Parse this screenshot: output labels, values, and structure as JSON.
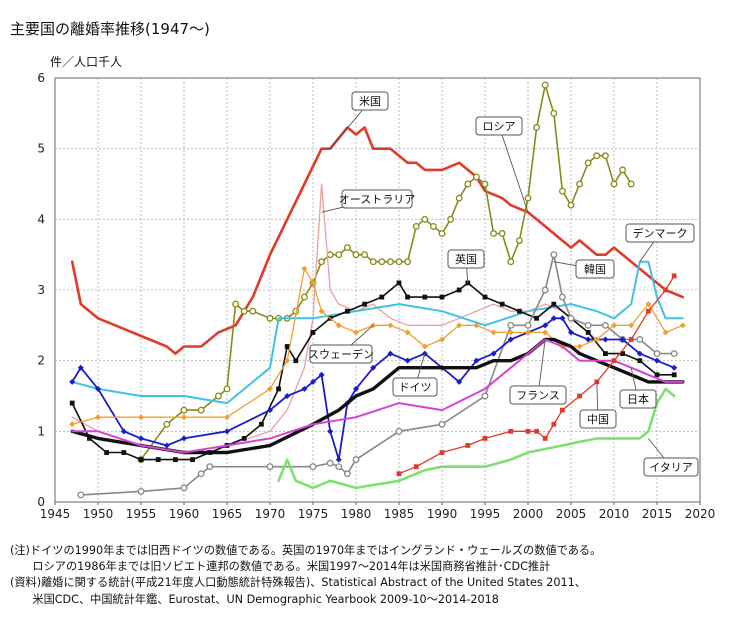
{
  "title": "主要国の離婚率推移(1947〜)",
  "notes": [
    "(注)ドイツの1990年までは旧西ドイツの数値である。英国の1970年まではイングランド・ウェールズの数値である。",
    "　　ロシアの1986年までは旧ソビエト連邦の数値である。米国1997〜2014年は米国商務省推計･CDC推計",
    "(資料)離婚に関する統計(平成21年度人口動態統計特殊報告)、Statistical Abstract of the United States 2011、",
    "　　米国CDC、中国統計年鑑、Eurostat、UN Demographic Yearbook 2009-10〜2014-2018"
  ],
  "chart_data": {
    "type": "line",
    "ylabel": "件／人口千人",
    "xlabel": "",
    "xlim": [
      1945,
      2020
    ],
    "ylim": [
      0,
      6
    ],
    "xticks": [
      1945,
      1950,
      1955,
      1960,
      1965,
      1970,
      1975,
      1980,
      1985,
      1990,
      1995,
      2000,
      2005,
      2010,
      2015,
      2020
    ],
    "yticks": [
      0,
      1,
      2,
      3,
      4,
      5,
      6
    ],
    "grid": true,
    "series": [
      {
        "name": "米国",
        "color": "#e03a2a",
        "width": 2.6,
        "marker": "none",
        "x": [
          1947,
          1948,
          1950,
          1952,
          1954,
          1956,
          1958,
          1959,
          1960,
          1962,
          1964,
          1966,
          1968,
          1970,
          1972,
          1974,
          1976,
          1977,
          1979,
          1980,
          1981,
          1982,
          1984,
          1986,
          1987,
          1988,
          1990,
          1992,
          1994,
          1995,
          1997,
          1998,
          2000,
          2001,
          2003,
          2005,
          2006,
          2007,
          2008,
          2009,
          2010,
          2012,
          2014,
          2016,
          2018
        ],
        "y": [
          3.4,
          2.8,
          2.6,
          2.5,
          2.4,
          2.3,
          2.2,
          2.1,
          2.2,
          2.2,
          2.4,
          2.5,
          2.9,
          3.5,
          4.0,
          4.5,
          5.0,
          5.0,
          5.3,
          5.2,
          5.3,
          5.0,
          5.0,
          4.8,
          4.8,
          4.7,
          4.7,
          4.8,
          4.6,
          4.4,
          4.3,
          4.2,
          4.1,
          4.0,
          3.8,
          3.6,
          3.7,
          3.6,
          3.5,
          3.5,
          3.6,
          3.4,
          3.2,
          3.0,
          2.9
        ]
      },
      {
        "name": "ロシア",
        "color": "#8a8a1a",
        "width": 1.6,
        "marker": "circle",
        "markerFill": "#ffffff",
        "x": [
          1955,
          1958,
          1960,
          1962,
          1964,
          1965,
          1966,
          1967,
          1968,
          1970,
          1971,
          1972,
          1973,
          1974,
          1975,
          1976,
          1977,
          1978,
          1979,
          1980,
          1981,
          1982,
          1983,
          1984,
          1985,
          1986,
          1987,
          1988,
          1989,
          1990,
          1991,
          1992,
          1993,
          1994,
          1995,
          1996,
          1997,
          1998,
          1999,
          2000,
          2001,
          2002,
          2003,
          2004,
          2005,
          2006,
          2007,
          2008,
          2009,
          2010,
          2011,
          2012
        ],
        "y": [
          0.6,
          1.1,
          1.3,
          1.3,
          1.5,
          1.6,
          2.8,
          2.7,
          2.7,
          2.6,
          2.6,
          2.6,
          2.7,
          2.9,
          3.1,
          3.4,
          3.5,
          3.5,
          3.6,
          3.5,
          3.5,
          3.4,
          3.4,
          3.4,
          3.4,
          3.4,
          3.9,
          4.0,
          3.9,
          3.8,
          4.0,
          4.3,
          4.5,
          4.6,
          4.5,
          3.8,
          3.8,
          3.4,
          3.7,
          4.3,
          5.3,
          5.9,
          5.5,
          4.4,
          4.2,
          4.5,
          4.8,
          4.9,
          4.9,
          4.5,
          4.7,
          4.5
        ]
      },
      {
        "name": "オーストラリア",
        "color": "#e8a0a0",
        "width": 1.3,
        "marker": "none",
        "x": [
          1947,
          1950,
          1955,
          1960,
          1965,
          1970,
          1972,
          1974,
          1975,
          1976,
          1977,
          1978,
          1980,
          1982,
          1984,
          1986,
          1988,
          1990,
          1992,
          1994,
          1996,
          1998,
          2000,
          2002,
          2004,
          2006,
          2008
        ],
        "y": [
          1.2,
          1.0,
          0.8,
          0.7,
          0.8,
          1.0,
          1.3,
          1.9,
          2.6,
          4.5,
          3.0,
          2.8,
          2.7,
          2.8,
          2.6,
          2.5,
          2.5,
          2.5,
          2.6,
          2.7,
          2.8,
          2.7,
          2.7,
          2.8,
          2.7,
          2.5,
          2.3
        ]
      },
      {
        "name": "デンマーク",
        "color": "#3cc4e6",
        "width": 2.0,
        "marker": "none",
        "x": [
          1947,
          1950,
          1955,
          1960,
          1965,
          1970,
          1971,
          1975,
          1980,
          1985,
          1990,
          1995,
          2000,
          2005,
          2008,
          2010,
          2012,
          2013,
          2014,
          2015,
          2016,
          2017,
          2018
        ],
        "y": [
          1.7,
          1.6,
          1.5,
          1.5,
          1.4,
          1.9,
          2.6,
          2.6,
          2.7,
          2.8,
          2.7,
          2.5,
          2.7,
          2.8,
          2.7,
          2.6,
          2.8,
          3.4,
          3.4,
          2.9,
          2.6,
          2.6,
          2.6
        ]
      },
      {
        "name": "英国",
        "color": "#111111",
        "width": 1.6,
        "marker": "square",
        "x": [
          1947,
          1949,
          1951,
          1953,
          1955,
          1957,
          1959,
          1961,
          1963,
          1965,
          1967,
          1969,
          1971,
          1972,
          1973,
          1975,
          1977,
          1979,
          1981,
          1983,
          1985,
          1986,
          1988,
          1990,
          1992,
          1993,
          1995,
          1997,
          1999,
          2001,
          2003,
          2005,
          2007,
          2009,
          2011,
          2013,
          2015,
          2017
        ],
        "y": [
          1.4,
          0.9,
          0.7,
          0.7,
          0.6,
          0.6,
          0.6,
          0.6,
          0.7,
          0.8,
          0.9,
          1.1,
          1.6,
          2.2,
          2.0,
          2.4,
          2.6,
          2.7,
          2.8,
          2.9,
          3.1,
          2.9,
          2.9,
          2.9,
          3.0,
          3.1,
          2.9,
          2.8,
          2.7,
          2.6,
          2.8,
          2.6,
          2.4,
          2.1,
          2.1,
          2.0,
          1.8,
          1.8
        ]
      },
      {
        "name": "韓国",
        "color": "#888888",
        "width": 1.6,
        "marker": "circle",
        "markerFill": "#ffffff",
        "x": [
          1948,
          1955,
          1960,
          1962,
          1963,
          1970,
          1975,
          1977,
          1978,
          1979,
          1980,
          1985,
          1990,
          1995,
          1998,
          2000,
          2002,
          2003,
          2004,
          2005,
          2007,
          2009,
          2011,
          2013,
          2015,
          2017
        ],
        "y": [
          0.1,
          0.15,
          0.2,
          0.4,
          0.5,
          0.5,
          0.5,
          0.55,
          0.5,
          0.4,
          0.6,
          1.0,
          1.1,
          1.5,
          2.5,
          2.5,
          3.0,
          3.5,
          2.9,
          2.6,
          2.5,
          2.5,
          2.3,
          2.3,
          2.1,
          2.1
        ]
      },
      {
        "name": "ドイツ",
        "color": "#1c1ccc",
        "width": 1.8,
        "marker": "diamond",
        "x": [
          1947,
          1948,
          1950,
          1953,
          1955,
          1958,
          1960,
          1965,
          1970,
          1972,
          1974,
          1975,
          1976,
          1977,
          1978,
          1979,
          1980,
          1982,
          1984,
          1986,
          1988,
          1990,
          1992,
          1994,
          1996,
          1998,
          2000,
          2002,
          2003,
          2004,
          2005,
          2007,
          2009,
          2011,
          2013,
          2015,
          2017
        ],
        "y": [
          1.7,
          1.9,
          1.6,
          1.0,
          0.9,
          0.8,
          0.9,
          1.0,
          1.3,
          1.5,
          1.6,
          1.7,
          1.8,
          1.0,
          0.6,
          1.4,
          1.6,
          1.9,
          2.1,
          2.0,
          2.1,
          1.9,
          1.7,
          2.0,
          2.1,
          2.3,
          2.4,
          2.5,
          2.6,
          2.6,
          2.4,
          2.3,
          2.3,
          2.3,
          2.1,
          2.0,
          1.9
        ]
      },
      {
        "name": "スウェーデン",
        "color": "#f0a030",
        "width": 1.3,
        "marker": "diamond",
        "x": [
          1947,
          1950,
          1955,
          1960,
          1965,
          1970,
          1972,
          1974,
          1975,
          1976,
          1978,
          1980,
          1982,
          1984,
          1986,
          1988,
          1990,
          1992,
          1994,
          1996,
          1998,
          2000,
          2002,
          2004,
          2006,
          2008,
          2010,
          2012,
          2014,
          2016,
          2018
        ],
        "y": [
          1.1,
          1.2,
          1.2,
          1.2,
          1.2,
          1.6,
          2.0,
          3.3,
          3.1,
          2.7,
          2.5,
          2.4,
          2.5,
          2.5,
          2.4,
          2.2,
          2.3,
          2.5,
          2.5,
          2.4,
          2.4,
          2.4,
          2.4,
          2.2,
          2.2,
          2.3,
          2.5,
          2.5,
          2.8,
          2.4,
          2.5
        ]
      },
      {
        "name": "フランス",
        "color": "#111111",
        "width": 3.4,
        "marker": "none",
        "x": [
          1947,
          1950,
          1955,
          1960,
          1965,
          1970,
          1975,
          1978,
          1980,
          1982,
          1984,
          1985,
          1988,
          1990,
          1992,
          1994,
          1996,
          1998,
          2000,
          2002,
          2003,
          2005,
          2006,
          2008,
          2010,
          2012,
          2014,
          2016,
          2018
        ],
        "y": [
          1.0,
          0.9,
          0.8,
          0.7,
          0.7,
          0.8,
          1.1,
          1.3,
          1.5,
          1.6,
          1.8,
          1.9,
          1.9,
          1.9,
          1.9,
          1.9,
          2.0,
          2.0,
          2.1,
          2.3,
          2.3,
          2.2,
          2.1,
          2.0,
          1.9,
          1.8,
          1.7,
          1.7,
          1.7
        ]
      },
      {
        "name": "日本",
        "color": "#d642d6",
        "width": 2.0,
        "marker": "none",
        "x": [
          1947,
          1950,
          1955,
          1960,
          1965,
          1970,
          1975,
          1980,
          1985,
          1990,
          1995,
          1998,
          2000,
          2002,
          2004,
          2006,
          2008,
          2010,
          2012,
          2014,
          2016,
          2018
        ],
        "y": [
          1.0,
          1.0,
          0.8,
          0.7,
          0.8,
          0.9,
          1.1,
          1.2,
          1.4,
          1.3,
          1.6,
          1.9,
          2.1,
          2.3,
          2.2,
          2.0,
          2.0,
          2.0,
          1.9,
          1.8,
          1.7,
          1.7
        ]
      },
      {
        "name": "中国",
        "color": "#e03a2a",
        "width": 1.3,
        "marker": "square",
        "x": [
          1985,
          1987,
          1990,
          1993,
          1995,
          1998,
          2000,
          2001,
          2002,
          2003,
          2004,
          2006,
          2008,
          2010,
          2012,
          2014,
          2016,
          2017
        ],
        "y": [
          0.4,
          0.5,
          0.7,
          0.8,
          0.9,
          1.0,
          1.0,
          1.0,
          0.9,
          1.1,
          1.3,
          1.5,
          1.7,
          2.0,
          2.3,
          2.7,
          3.0,
          3.2
        ]
      },
      {
        "name": "イタリア",
        "color": "#7ee070",
        "width": 2.6,
        "marker": "none",
        "x": [
          1971,
          1972,
          1973,
          1975,
          1977,
          1980,
          1985,
          1988,
          1990,
          1992,
          1995,
          1998,
          2000,
          2004,
          2006,
          2008,
          2010,
          2012,
          2013,
          2014,
          2015,
          2016,
          2017
        ],
        "y": [
          0.3,
          0.6,
          0.3,
          0.2,
          0.3,
          0.2,
          0.3,
          0.45,
          0.5,
          0.5,
          0.5,
          0.6,
          0.7,
          0.8,
          0.85,
          0.9,
          0.9,
          0.9,
          0.9,
          1.0,
          1.4,
          1.6,
          1.5
        ]
      }
    ],
    "callouts": [
      {
        "series": "米国",
        "label": "米国"
      },
      {
        "series": "ロシア",
        "label": "ロシア"
      },
      {
        "series": "オーストラリア",
        "label": "オーストラリア"
      },
      {
        "series": "デンマーク",
        "label": "デンマーク"
      },
      {
        "series": "英国",
        "label": "英国"
      },
      {
        "series": "韓国",
        "label": "韓国"
      },
      {
        "series": "スウェーデン",
        "label": "スウェーデン"
      },
      {
        "series": "ドイツ",
        "label": "ドイツ"
      },
      {
        "series": "フランス",
        "label": "フランス"
      },
      {
        "series": "日本",
        "label": "日本"
      },
      {
        "series": "中国",
        "label": "中国"
      },
      {
        "series": "イタリア",
        "label": "イタリア"
      }
    ]
  }
}
